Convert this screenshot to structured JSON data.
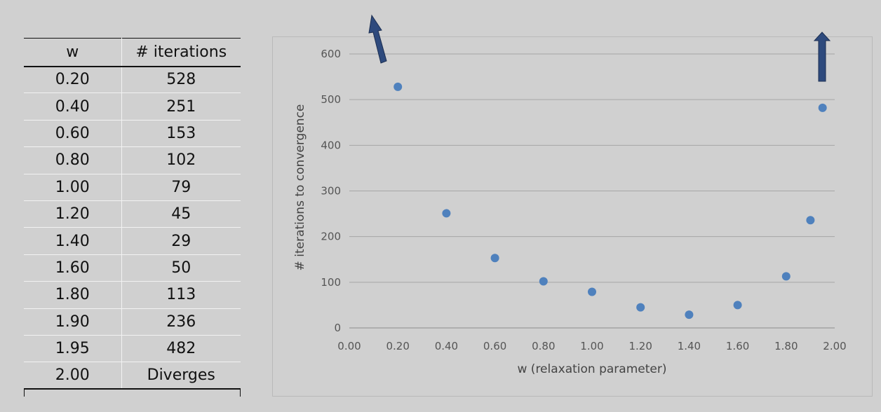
{
  "table": {
    "headers": [
      "w",
      "# iterations"
    ],
    "rows": [
      [
        "0.20",
        "528"
      ],
      [
        "0.40",
        "251"
      ],
      [
        "0.60",
        "153"
      ],
      [
        "0.80",
        "102"
      ],
      [
        "1.00",
        "79"
      ],
      [
        "1.20",
        "45"
      ],
      [
        "1.40",
        "29"
      ],
      [
        "1.60",
        "50"
      ],
      [
        "1.80",
        "113"
      ],
      [
        "1.90",
        "236"
      ],
      [
        "1.95",
        "482"
      ],
      [
        "2.00",
        "Diverges"
      ]
    ]
  },
  "chart_data": {
    "type": "scatter",
    "title": "",
    "xlabel": "w (relaxation parameter)",
    "ylabel": "# iterations to convergence",
    "xlim": [
      0,
      2
    ],
    "ylim": [
      0,
      600
    ],
    "xticks": [
      "0.00",
      "0.20",
      "0.40",
      "0.60",
      "0.80",
      "1.00",
      "1.20",
      "1.40",
      "1.60",
      "1.80",
      "2.00"
    ],
    "yticks": [
      "0",
      "100",
      "200",
      "300",
      "400",
      "500",
      "600"
    ],
    "grid": "horizontal",
    "x": [
      0.2,
      0.4,
      0.6,
      0.8,
      1.0,
      1.2,
      1.4,
      1.6,
      1.8,
      1.9,
      1.95
    ],
    "y": [
      528,
      251,
      153,
      102,
      79,
      45,
      29,
      50,
      113,
      236,
      482
    ],
    "marker_color": "#4f81bd",
    "annotations": [
      {
        "type": "arrow",
        "icon": "off-scale-up-left-arrow",
        "color": "#2e4a7d"
      },
      {
        "type": "arrow",
        "icon": "off-scale-up-arrow",
        "color": "#2e4a7d"
      }
    ]
  }
}
